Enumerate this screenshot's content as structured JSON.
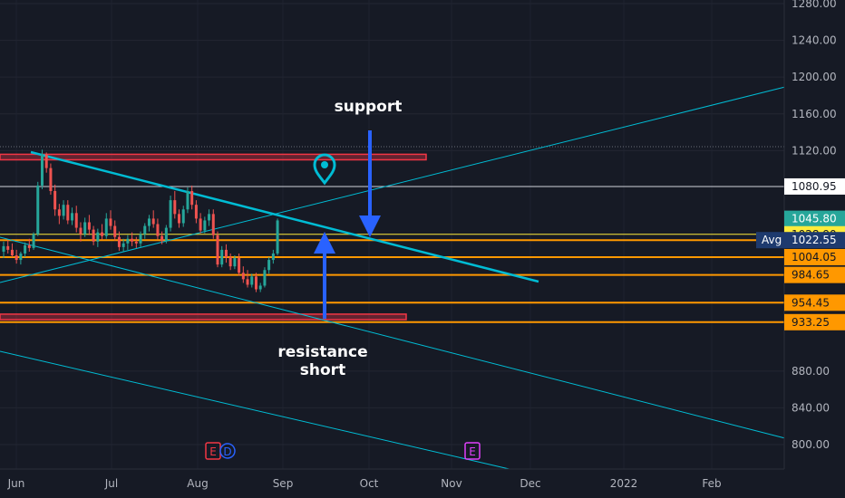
{
  "chart_data": {
    "type": "candlestick",
    "y_axis": {
      "min": 780,
      "max": 1290,
      "ticks": [
        1280,
        1240,
        1200,
        1160,
        1120,
        880,
        840,
        800
      ],
      "tick_labels": [
        "1280.00",
        "1240.00",
        "1200.00",
        "1160.00",
        "1120.00",
        "880.00",
        "840.00",
        "800.00"
      ]
    },
    "x_axis": {
      "labels": [
        "Jun",
        "Jul",
        "Aug",
        "Sep",
        "Oct",
        "Nov",
        "Dec",
        "2022",
        "Feb"
      ]
    },
    "price_tags": [
      {
        "value": 1080.95,
        "label": "1080.95",
        "bg": "#ffffff",
        "fg": "#131722"
      },
      {
        "value": 1045.8,
        "label": "1045.80",
        "bg": "#26a69a",
        "fg": "#ffffff"
      },
      {
        "value": 1028.9,
        "label": "1028.90",
        "bg": "#ffeb3b",
        "fg": "#131722"
      },
      {
        "value": 1022.55,
        "label": "1022.55",
        "bg": "#1e3a6e",
        "fg": "#ffffff",
        "prefix": "Avg"
      },
      {
        "value": 1004.05,
        "label": "1004.05",
        "bg": "#ff9800",
        "fg": "#131722"
      },
      {
        "value": 984.65,
        "label": "984.65",
        "bg": "#ff9800",
        "fg": "#131722"
      },
      {
        "value": 954.45,
        "label": "954.45",
        "bg": "#ff9800",
        "fg": "#131722"
      },
      {
        "value": 933.25,
        "label": "933.25",
        "bg": "#ff9800",
        "fg": "#131722"
      }
    ],
    "horizontal_lines": [
      {
        "value": 1080.95,
        "color": "#d1d4dc"
      },
      {
        "value": 1028.9,
        "color": "#ffeb3b"
      },
      {
        "value": 1022.55,
        "color": "#ff9800"
      },
      {
        "value": 1004.05,
        "color": "#ff9800"
      },
      {
        "value": 984.65,
        "color": "#ff9800"
      },
      {
        "value": 954.45,
        "color": "#ff9800"
      },
      {
        "value": 933.25,
        "color": "#ff9800"
      }
    ],
    "zones": [
      {
        "from": 1110,
        "to": 1116,
        "x_end_label": "Oct",
        "color": "#f23645"
      },
      {
        "from": 936,
        "to": 942,
        "x_end_label": "Oct",
        "color": "#f23645"
      }
    ],
    "annotations": {
      "support": "support",
      "resistance": "resistance",
      "short": "short"
    },
    "event_markers": [
      {
        "x_label": "Aug",
        "text": "E",
        "color": "#f23645"
      },
      {
        "x_label": "Aug",
        "text": "D",
        "color": "#2962ff"
      },
      {
        "x_label": "Oct",
        "text": "E",
        "color": "#e040fb"
      }
    ],
    "up_color": "#26a69a",
    "down_color": "#ef5350",
    "candles": [
      [
        1010,
        1021,
        1003,
        1016
      ],
      [
        1016,
        1023,
        1008,
        1012
      ],
      [
        1012,
        1019,
        1004,
        1006
      ],
      [
        1006,
        1012,
        997,
        1001
      ],
      [
        1001,
        1010,
        996,
        1008
      ],
      [
        1008,
        1020,
        1004,
        1017
      ],
      [
        1017,
        1024,
        1010,
        1014
      ],
      [
        1014,
        1031,
        1012,
        1029
      ],
      [
        1029,
        1086,
        1027,
        1082
      ],
      [
        1082,
        1121,
        1078,
        1116
      ],
      [
        1116,
        1118,
        1096,
        1101
      ],
      [
        1101,
        1106,
        1072,
        1076
      ],
      [
        1076,
        1083,
        1049,
        1056
      ],
      [
        1056,
        1062,
        1040,
        1049
      ],
      [
        1049,
        1066,
        1045,
        1061
      ],
      [
        1061,
        1066,
        1040,
        1044
      ],
      [
        1044,
        1058,
        1039,
        1052
      ],
      [
        1052,
        1060,
        1031,
        1036
      ],
      [
        1036,
        1042,
        1021,
        1029
      ],
      [
        1029,
        1047,
        1026,
        1042
      ],
      [
        1042,
        1050,
        1028,
        1034
      ],
      [
        1034,
        1038,
        1017,
        1021
      ],
      [
        1021,
        1035,
        1015,
        1031
      ],
      [
        1031,
        1040,
        1023,
        1027
      ],
      [
        1027,
        1052,
        1024,
        1046
      ],
      [
        1046,
        1055,
        1034,
        1038
      ],
      [
        1038,
        1044,
        1022,
        1026
      ],
      [
        1026,
        1032,
        1011,
        1015
      ],
      [
        1015,
        1024,
        1010,
        1019
      ],
      [
        1019,
        1028,
        1012,
        1024
      ],
      [
        1024,
        1031,
        1016,
        1021
      ],
      [
        1021,
        1026,
        1014,
        1019
      ],
      [
        1019,
        1032,
        1015,
        1029
      ],
      [
        1029,
        1041,
        1024,
        1038
      ],
      [
        1038,
        1050,
        1032,
        1046
      ],
      [
        1046,
        1055,
        1036,
        1040
      ],
      [
        1040,
        1046,
        1023,
        1027
      ],
      [
        1027,
        1032,
        1018,
        1022
      ],
      [
        1022,
        1039,
        1019,
        1036
      ],
      [
        1036,
        1071,
        1032,
        1066
      ],
      [
        1066,
        1076,
        1046,
        1051
      ],
      [
        1051,
        1056,
        1036,
        1041
      ],
      [
        1041,
        1060,
        1037,
        1056
      ],
      [
        1056,
        1080,
        1052,
        1076
      ],
      [
        1076,
        1082,
        1056,
        1061
      ],
      [
        1061,
        1066,
        1041,
        1046
      ],
      [
        1046,
        1052,
        1030,
        1033
      ],
      [
        1033,
        1048,
        1030,
        1044
      ],
      [
        1044,
        1056,
        1038,
        1051
      ],
      [
        1051,
        1056,
        1024,
        1028
      ],
      [
        1028,
        1032,
        993,
        996
      ],
      [
        996,
        1016,
        993,
        1012
      ],
      [
        1012,
        1018,
        998,
        1004
      ],
      [
        1004,
        1008,
        990,
        994
      ],
      [
        994,
        1006,
        991,
        1003
      ],
      [
        1003,
        1008,
        984,
        987
      ],
      [
        987,
        994,
        976,
        980
      ],
      [
        980,
        990,
        971,
        974
      ],
      [
        974,
        986,
        971,
        983
      ],
      [
        983,
        987,
        966,
        969
      ],
      [
        969,
        976,
        966,
        973
      ],
      [
        973,
        993,
        971,
        990
      ],
      [
        990,
        1004,
        986,
        1001
      ],
      [
        1001,
        1012,
        997,
        1008
      ],
      [
        1008,
        1046,
        1006,
        1044
      ]
    ]
  }
}
